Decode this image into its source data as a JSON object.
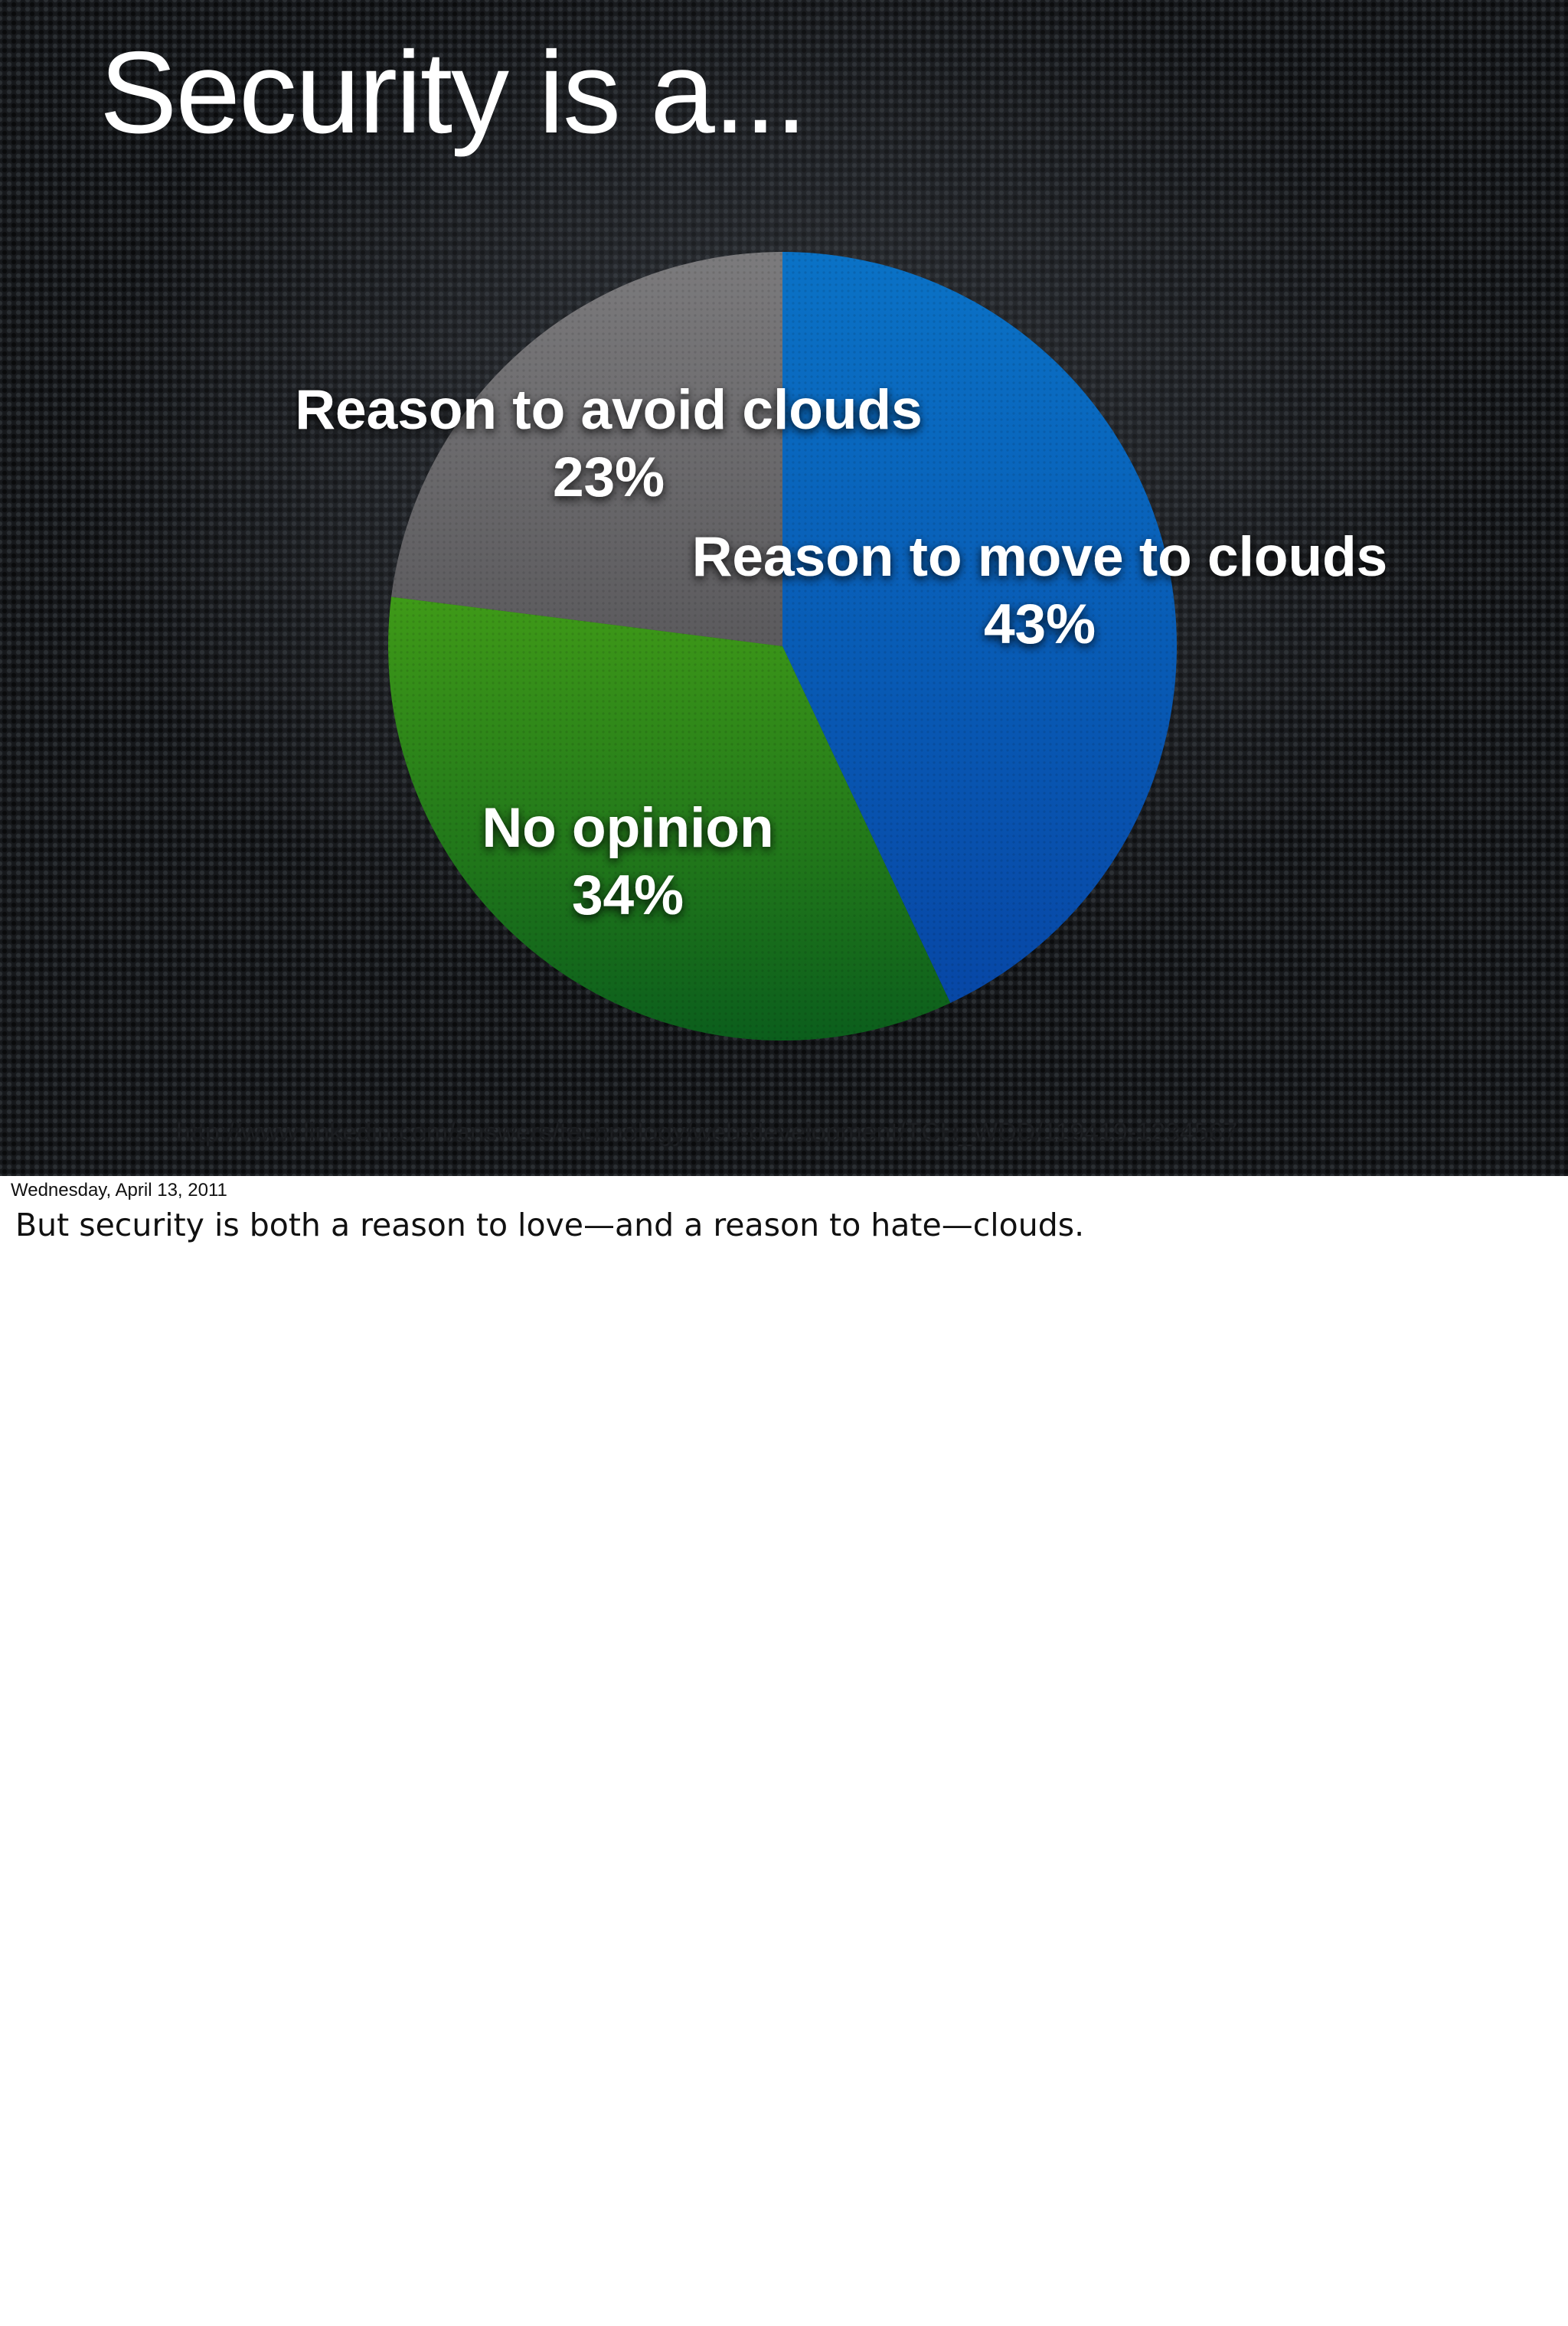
{
  "slide": {
    "title": "Security is a...",
    "source": "http://www.linkedin.com/answers/technology/web-development/TCH_WDD/119419-1234567"
  },
  "footer": {
    "date": "Wednesday, April 13, 2011",
    "notes": "But security is both a reason to love—and a reason to hate—clouds."
  },
  "chart_data": {
    "type": "pie",
    "title": "",
    "start_angle_deg": 0,
    "direction": "clockwise",
    "slices": [
      {
        "name": "Reason to move to clouds",
        "value": 43,
        "value_label": "43%",
        "color": "#0a72c6",
        "color_dark": "#0747a6"
      },
      {
        "name": "No opinion",
        "value": 34,
        "value_label": "34%",
        "color": "#3f9a18",
        "color_dark": "#0b5e1c"
      },
      {
        "name": "Reason to avoid clouds",
        "value": 23,
        "value_label": "23%",
        "color": "#7c7b7d",
        "color_dark": "#5b5a5d"
      }
    ]
  }
}
